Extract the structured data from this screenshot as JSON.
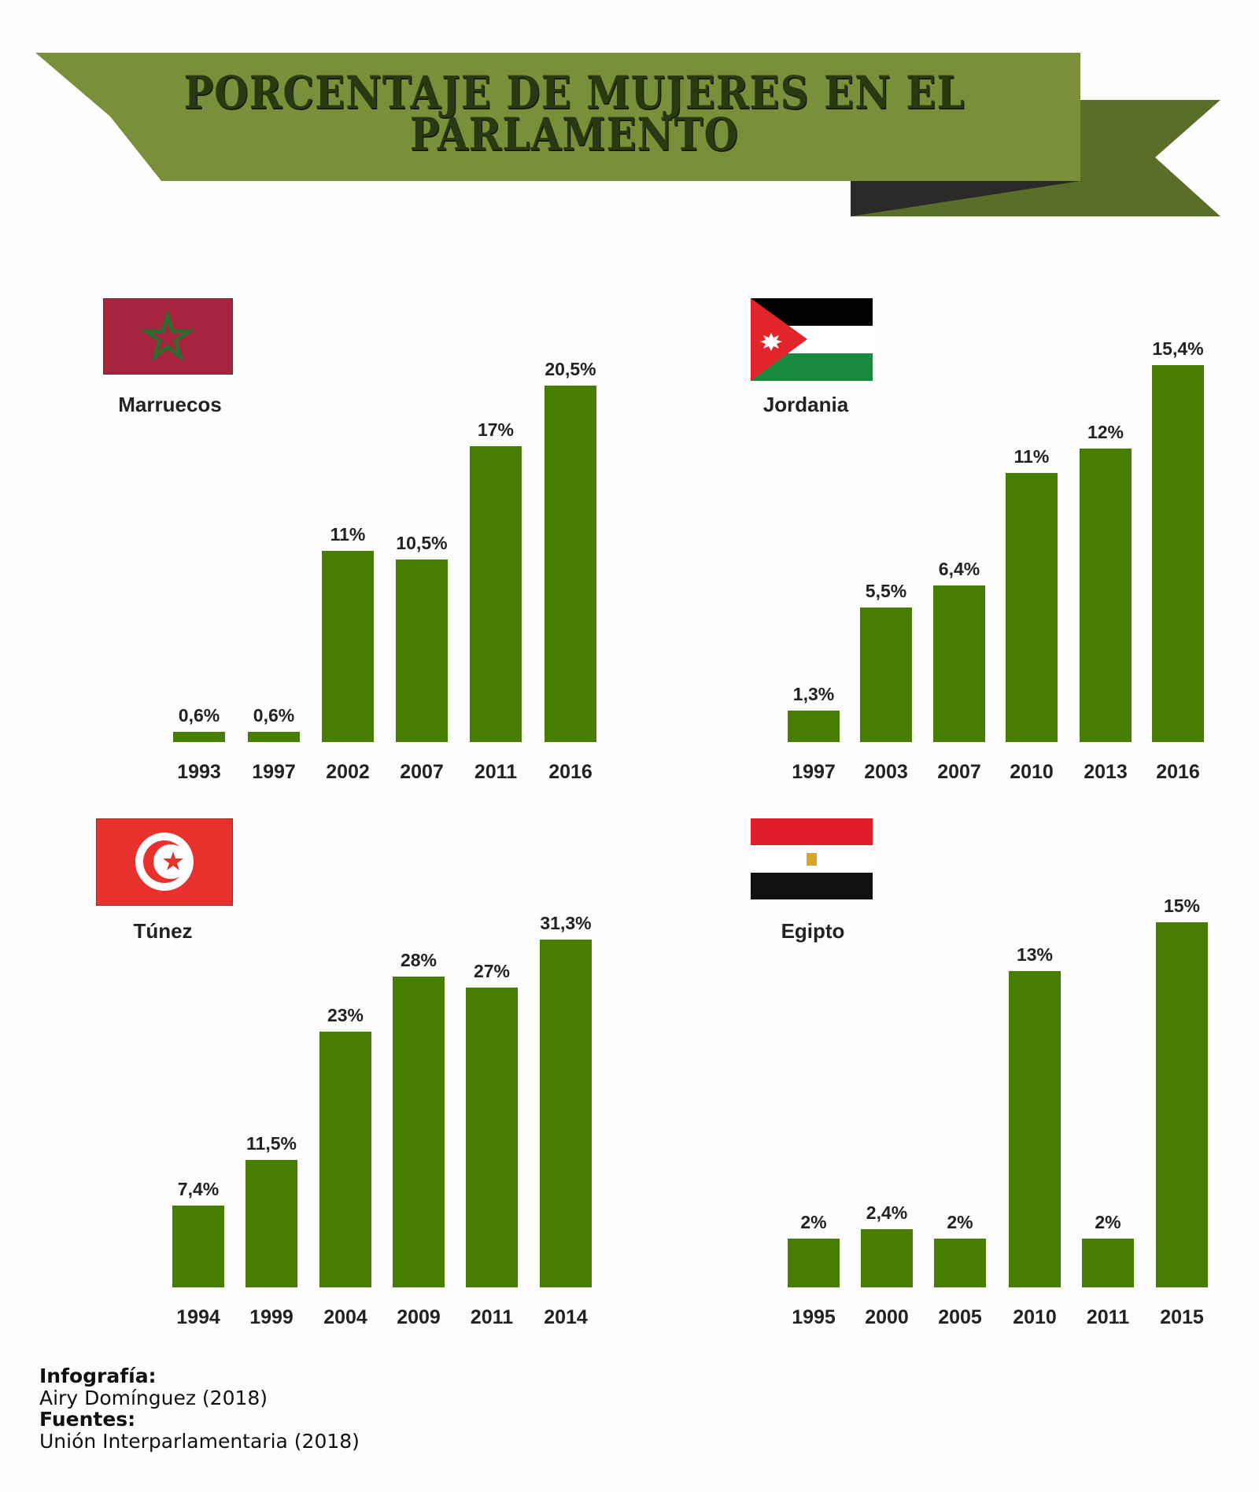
{
  "title_line1": "PORCENTAJE DE MUJERES EN EL",
  "title_line2": "PARLAMENTO",
  "colors": {
    "bar": "#477d00",
    "banner": "#7a8f39",
    "ribbon": "#5a6e28",
    "fold": "#2a2a2a"
  },
  "chart_data": [
    {
      "type": "bar",
      "title": "Marruecos",
      "categories": [
        "1993",
        "1997",
        "2002",
        "2007",
        "2011",
        "2016"
      ],
      "values": [
        0.6,
        0.6,
        11,
        10.5,
        17,
        20.5
      ],
      "labels": [
        "0,6%",
        "0,6%",
        "11%",
        "10,5%",
        "17%",
        "20,5%"
      ],
      "ylabel": "%"
    },
    {
      "type": "bar",
      "title": "Jordania",
      "categories": [
        "1997",
        "2003",
        "2007",
        "2010",
        "2013",
        "2016"
      ],
      "values": [
        1.3,
        5.5,
        6.4,
        11,
        12,
        15.4
      ],
      "labels": [
        "1,3%",
        "5,5%",
        "6,4%",
        "11%",
        "12%",
        "15,4%"
      ],
      "ylabel": "%"
    },
    {
      "type": "bar",
      "title": "Túnez",
      "categories": [
        "1994",
        "1999",
        "2004",
        "2009",
        "2011",
        "2014"
      ],
      "values": [
        7.4,
        11.5,
        23,
        28,
        27,
        31.3
      ],
      "labels": [
        "7,4%",
        "11,5%",
        "23%",
        "28%",
        "27%",
        "31,3%"
      ],
      "ylabel": "%"
    },
    {
      "type": "bar",
      "title": "Egipto",
      "categories": [
        "1995",
        "2000",
        "2005",
        "2010",
        "2011",
        "2015"
      ],
      "values": [
        2,
        2.4,
        2,
        13,
        2,
        15
      ],
      "labels": [
        "2%",
        "2,4%",
        "2%",
        "13%",
        "2%",
        "15%"
      ],
      "ylabel": "%"
    }
  ],
  "footer": {
    "infografia_label": "Infografía:",
    "infografia_value": "Airy Domínguez (2018)",
    "fuentes_label": "Fuentes:",
    "fuentes_value": "Unión Interparlamentaria (2018)"
  }
}
